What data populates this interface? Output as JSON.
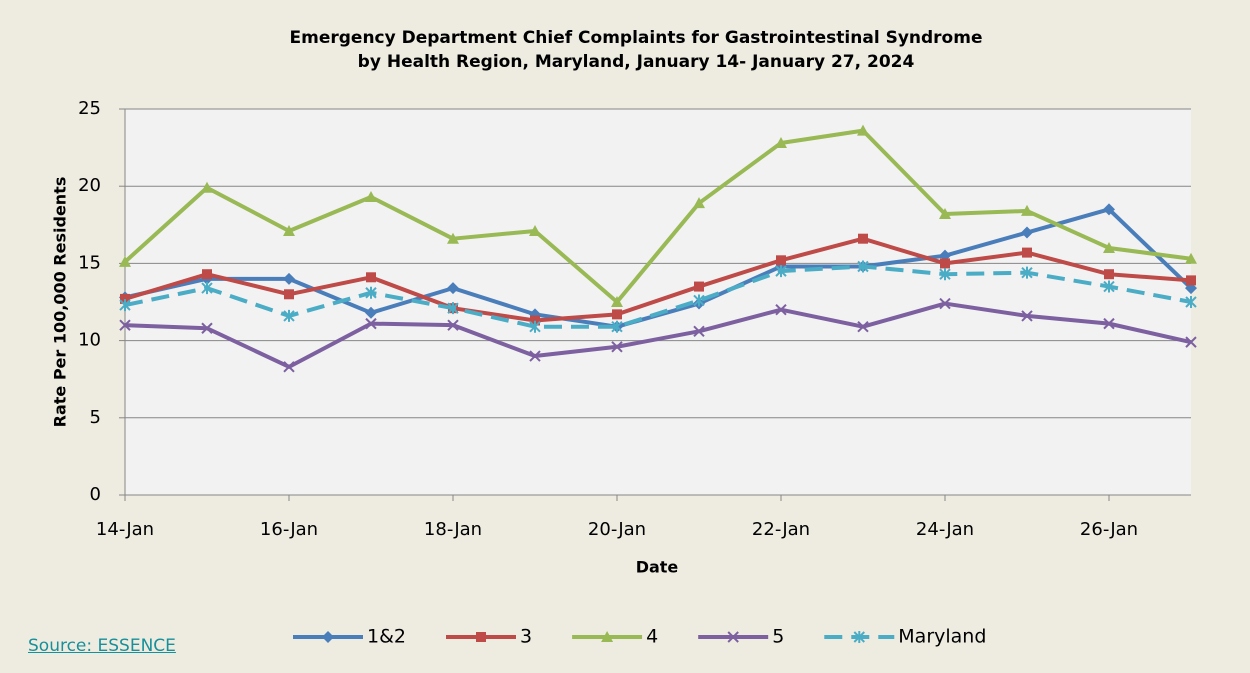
{
  "chart_data": {
    "type": "line",
    "title": "Emergency Department Chief Complaints for Gastrointestinal Syndrome",
    "subtitle": "by Health Region, Maryland, January 14- January 27, 2024",
    "x_label": "Date",
    "y_label": "Rate Per 100,000 Residents",
    "source": "Source: ESSENCE",
    "categories": [
      "14-Jan",
      null,
      "16-Jan",
      null,
      "18-Jan",
      null,
      "20-Jan",
      null,
      "22-Jan",
      null,
      "24-Jan",
      null,
      "26-Jan",
      null
    ],
    "ylim": [
      0,
      25
    ],
    "yticks": [
      0,
      5,
      10,
      15,
      20,
      25
    ],
    "grid": true,
    "legend": "bottom",
    "series": [
      {
        "name": "1&2",
        "color": "#4a7ebb",
        "marker": "diamond",
        "dashed": false,
        "values": [
          12.8,
          14.0,
          14.0,
          11.8,
          13.4,
          11.7,
          10.9,
          12.4,
          14.8,
          14.8,
          15.5,
          17.0,
          18.5,
          13.4
        ]
      },
      {
        "name": "3",
        "color": "#be4b48",
        "marker": "square",
        "dashed": false,
        "values": [
          12.7,
          14.3,
          13.0,
          14.1,
          12.1,
          11.3,
          11.7,
          13.5,
          15.2,
          16.6,
          15.0,
          15.7,
          14.3,
          13.9
        ]
      },
      {
        "name": "4",
        "color": "#98b954",
        "marker": "triangle",
        "dashed": false,
        "values": [
          15.1,
          19.9,
          17.1,
          19.3,
          16.6,
          17.1,
          12.5,
          18.9,
          22.8,
          23.6,
          18.2,
          18.4,
          16.0,
          15.3
        ]
      },
      {
        "name": "5",
        "color": "#7d60a0",
        "marker": "x",
        "dashed": false,
        "values": [
          11.0,
          10.8,
          8.3,
          11.1,
          11.0,
          9.0,
          9.6,
          10.6,
          12.0,
          10.9,
          12.4,
          11.6,
          11.1,
          9.9
        ]
      },
      {
        "name": "Maryland",
        "color": "#4bacc6",
        "marker": "star",
        "dashed": true,
        "values": [
          12.3,
          13.4,
          11.6,
          13.1,
          12.1,
          10.9,
          10.9,
          12.6,
          14.5,
          14.8,
          14.3,
          14.4,
          13.5,
          12.5
        ]
      }
    ]
  }
}
